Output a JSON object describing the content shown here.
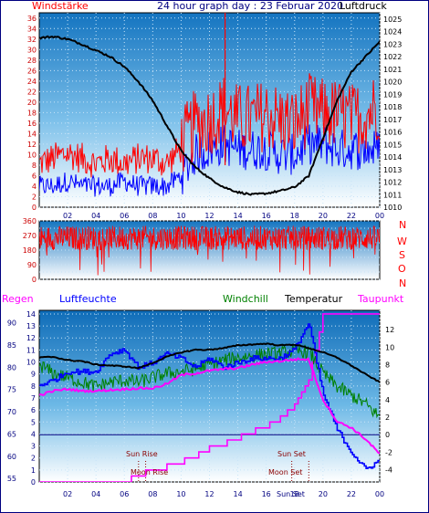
{
  "header": {
    "left_label": "Windstärke",
    "title": "24 hour graph day : 23 Februar 2020",
    "right_label": "Luftdruck"
  },
  "compass": [
    "N",
    "W",
    "S",
    "O",
    "N"
  ],
  "legend_bottom": {
    "regen": "Regen",
    "luftfeuchte": "Luftfeuchte",
    "windchill": "Windchill",
    "temperatur": "Temperatur",
    "taupunkt": "Taupunkt"
  },
  "annotations": {
    "sun_rise": "Sun Rise",
    "moon_rise": "Moon Rise",
    "sun_set": "Sun Set",
    "moon_set": "Moon Set",
    "sun_set_tick": "Sun Set"
  },
  "colors": {
    "wind": "#ff0000",
    "gust": "#0000ff",
    "pressure": "#000000",
    "humidity": "#0000ff",
    "windchill": "#008000",
    "temperature": "#000000",
    "dewpoint": "#ff00ff",
    "rain": "#ff00ff",
    "frame": "#000080",
    "axis_text_red": "#cc0000"
  },
  "chart_data": [
    {
      "type": "line",
      "title": "24 hour graph day : 23 Februar 2020",
      "xlabel": "",
      "x_ticks": [
        "02",
        "04",
        "06",
        "08",
        "10",
        "12",
        "14",
        "16",
        "18",
        "20",
        "22",
        "00"
      ],
      "y_left": {
        "label": "Windstärke",
        "ticks": [
          0,
          2,
          4,
          6,
          8,
          10,
          12,
          14,
          16,
          18,
          20,
          22,
          24,
          26,
          28,
          30,
          32,
          34,
          36
        ],
        "range": [
          0,
          37
        ]
      },
      "y_right": {
        "label": "Luftdruck",
        "ticks": [
          1010,
          1011,
          1012,
          1013,
          1014,
          1015,
          1016,
          1017,
          1018,
          1019,
          1020,
          1021,
          1022,
          1023,
          1024,
          1025
        ],
        "range": [
          1010,
          1025.5
        ]
      },
      "x_hours": [
        0,
        1,
        2,
        3,
        4,
        5,
        6,
        7,
        8,
        9,
        10,
        11,
        12,
        13,
        14,
        15,
        16,
        17,
        18,
        19,
        20,
        21,
        22,
        23,
        24
      ],
      "series": [
        {
          "name": "Windstärke",
          "axis": "left",
          "values": [
            8,
            9,
            10,
            9,
            8,
            9,
            8,
            9,
            9,
            8,
            11,
            15,
            16,
            18,
            16,
            16,
            17,
            16,
            15,
            18,
            17,
            17,
            16,
            17,
            19
          ]
        },
        {
          "name": "Windstärke (low)",
          "axis": "left",
          "values": [
            4,
            4,
            5,
            4,
            4,
            4,
            5,
            4,
            4,
            4,
            6,
            10,
            11,
            12,
            11,
            11,
            11,
            10,
            10,
            12,
            12,
            11,
            11,
            11,
            11
          ]
        },
        {
          "name": "Luftdruck",
          "axis": "right",
          "values": [
            1023.5,
            1023.6,
            1023.4,
            1023.0,
            1022.5,
            1022.0,
            1021.2,
            1020.0,
            1018.5,
            1016.5,
            1014.5,
            1013.2,
            1012.3,
            1011.6,
            1011.2,
            1011.0,
            1011.1,
            1011.3,
            1011.6,
            1012.5,
            1015.5,
            1018.5,
            1020.8,
            1022.0,
            1023.2
          ]
        }
      ],
      "spikes": [
        {
          "x": 13.1,
          "value": 37
        }
      ]
    },
    {
      "type": "line",
      "title": "",
      "x_ticks": [],
      "y_left": {
        "ticks": [
          0,
          45,
          90,
          135,
          180,
          225,
          270,
          315,
          360
        ],
        "range": [
          0,
          360
        ]
      },
      "y_right_labels": [
        "N",
        "W",
        "S",
        "O",
        "N"
      ],
      "series": [
        {
          "name": "Windrichtung",
          "typical_min": 180,
          "typical_max": 330,
          "mean": 260
        }
      ]
    },
    {
      "type": "line",
      "title": "",
      "x_ticks": [
        "02",
        "04",
        "06",
        "08",
        "10",
        "12",
        "14",
        "16",
        "18",
        "20",
        "22",
        "00"
      ],
      "y_left_humidity": {
        "label": "Luftfeuchte",
        "ticks": [
          55,
          60,
          65,
          70,
          75,
          80,
          85,
          90
        ],
        "range": [
          54.2,
          92.8
        ]
      },
      "y_left_rain": {
        "label": "Regen",
        "ticks": [
          0,
          1,
          2,
          3,
          4,
          5,
          6,
          7,
          8,
          9,
          10,
          11,
          12,
          13,
          14
        ],
        "range": [
          0,
          14.3
        ]
      },
      "y_right": {
        "label": "Temperatur",
        "ticks": [
          -4,
          -2,
          0,
          2,
          4,
          6,
          8,
          10,
          12
        ],
        "range": [
          -5.4,
          14.2
        ]
      },
      "x_hours": [
        0,
        1,
        2,
        3,
        4,
        5,
        6,
        7,
        8,
        9,
        10,
        11,
        12,
        13,
        14,
        15,
        16,
        17,
        18,
        19,
        20,
        21,
        22,
        23,
        24
      ],
      "series": [
        {
          "name": "Temperatur",
          "axis": "right",
          "values": [
            8.8,
            8.9,
            8.5,
            8.4,
            8.0,
            7.9,
            7.8,
            7.6,
            8.2,
            8.9,
            9.4,
            9.7,
            9.7,
            9.9,
            10.2,
            10.3,
            10.4,
            10.2,
            10.3,
            9.9,
            9.4,
            8.8,
            7.9,
            6.9,
            6.0
          ]
        },
        {
          "name": "Windchill",
          "axis": "right",
          "values": [
            8.0,
            7.0,
            6.5,
            6.0,
            5.5,
            6.0,
            6.2,
            6.0,
            6.5,
            7.0,
            7.2,
            7.5,
            8.0,
            8.5,
            8.8,
            9.0,
            9.2,
            9.3,
            9.5,
            9.5,
            7.0,
            5.5,
            4.5,
            3.5,
            2.0
          ]
        },
        {
          "name": "Taupunkt",
          "axis": "right",
          "values": [
            4.5,
            5.0,
            5.2,
            5.0,
            5.0,
            5.1,
            5.2,
            5.3,
            5.3,
            5.8,
            6.8,
            7.0,
            7.3,
            7.5,
            7.6,
            8.0,
            8.3,
            8.4,
            8.6,
            8.6,
            4.0,
            1.5,
            0.8,
            -0.5,
            -2.2
          ]
        },
        {
          "name": "Luftfeuchte",
          "axis": "left_humidity",
          "values": [
            76,
            77,
            79,
            79,
            79,
            83,
            84,
            80,
            81,
            83,
            82,
            80,
            82,
            80,
            81,
            82,
            82,
            82,
            84,
            90,
            74,
            66,
            61,
            57,
            59
          ]
        },
        {
          "name": "Regen",
          "axis": "left_rain",
          "values": [
            0,
            0,
            0,
            0,
            0,
            0,
            0,
            0.5,
            1.0,
            1.3,
            1.7,
            2.1,
            2.8,
            3.2,
            3.7,
            4.1,
            4.7,
            5.4,
            6.5,
            8.4,
            14,
            14,
            14,
            14,
            14
          ]
        }
      ],
      "reference_lines": [
        {
          "axis": "right",
          "value": 0
        }
      ]
    }
  ]
}
